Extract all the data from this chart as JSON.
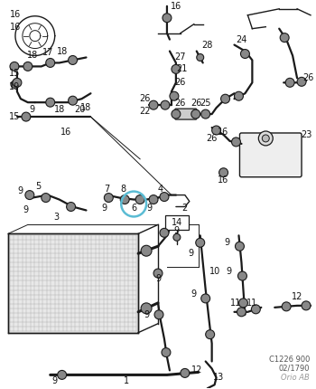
{
  "background_color": "#ffffff",
  "line_color": "#1a1a1a",
  "highlight_color": "#5bbcd4",
  "label_color": "#111111",
  "ref_color": "#555555",
  "orio_color": "#999999",
  "fig_width": 3.5,
  "fig_height": 4.3,
  "dpi": 100,
  "lw_thick": 2.2,
  "lw_med": 1.6,
  "lw_thin": 1.0,
  "clamp_r": 0.008,
  "label_fs": 7.0,
  "small_fs": 6.0
}
